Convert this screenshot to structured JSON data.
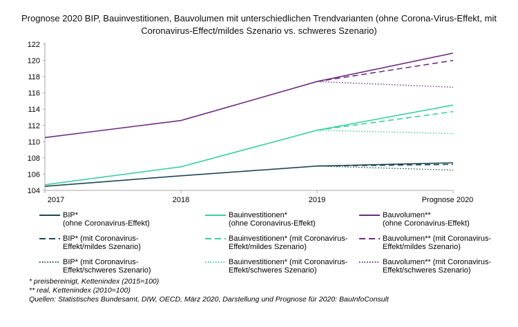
{
  "title": "Prognose 2020 BIP, Bauinvestitionen, Bauvolumen mit unterschiedlichen Trendvarianten (ohne Corona-Virus-Effekt, mit Coronavirus-Effect/mildes Szenario vs. schweres Szenario)",
  "colors": {
    "bip": "#1c4655",
    "bauinvestitionen": "#38cfa2",
    "bauvolumen": "#6b2a7e",
    "axis": "#a6a6a6",
    "text": "#000000",
    "background": "#ffffff"
  },
  "chart_data": {
    "type": "line",
    "title": "Prognose 2020 BIP, Bauinvestitionen, Bauvolumen mit unterschiedlichen Trendvarianten",
    "categories": [
      "2017",
      "2018",
      "2019",
      "Prognose 2020"
    ],
    "ylim": [
      104,
      122
    ],
    "ytick_step": 2,
    "grid": false,
    "legend_position": "bottom",
    "series": [
      {
        "name": "BIP* (ohne Coronavirus-Effekt)",
        "color": "#1c4655",
        "style": "solid",
        "values": [
          104.5,
          105.8,
          107.0,
          107.4
        ]
      },
      {
        "name": "BIP* (mit Coronavirus-Effekt/mildes Szenario)",
        "color": "#1c4655",
        "style": "dashed",
        "values": [
          null,
          null,
          107.0,
          107.2
        ]
      },
      {
        "name": "BIP* (mit Coronavirus-Effekt/schweres Szenario)",
        "color": "#1c4655",
        "style": "dotted",
        "values": [
          null,
          null,
          107.0,
          106.5
        ]
      },
      {
        "name": "Bauinvestitionen* (ohne Coronavirus-Effekt)",
        "color": "#38cfa2",
        "style": "solid",
        "values": [
          104.7,
          106.9,
          111.4,
          114.5
        ]
      },
      {
        "name": "Bauinvestitionen* (mit Coronavirus-Effekt/mildes Szenario)",
        "color": "#38cfa2",
        "style": "dashed",
        "values": [
          null,
          null,
          111.4,
          113.7
        ]
      },
      {
        "name": "Bauinvestitionen* (mit Coronavirus-Effekt/schweres Szenario)",
        "color": "#38cfa2",
        "style": "dotted",
        "values": [
          null,
          null,
          111.4,
          111.0
        ]
      },
      {
        "name": "Bauvolumen** (ohne Coronavirus-Effekt)",
        "color": "#6b2a7e",
        "style": "solid",
        "values": [
          110.5,
          112.6,
          117.4,
          120.9
        ]
      },
      {
        "name": "Bauvolumen** (mit Coronavirus-Effekt/mildes Szenario)",
        "color": "#6b2a7e",
        "style": "dashed",
        "values": [
          null,
          null,
          117.4,
          120.0
        ]
      },
      {
        "name": "Bauvolumen** (mit Coronavirus-Effekt/schweres Szenario)",
        "color": "#6b2a7e",
        "style": "dotted",
        "values": [
          null,
          null,
          117.4,
          116.7
        ]
      }
    ]
  },
  "legend": {
    "items": [
      {
        "style": "solid",
        "color": "#1c4655",
        "line1": "BIP*",
        "line2": "(ohne Coronavirus-Effekt)"
      },
      {
        "style": "solid",
        "color": "#38cfa2",
        "line1": "Bauinvestitionen*",
        "line2": "(ohne Coronavirus-Effekt)"
      },
      {
        "style": "solid",
        "color": "#6b2a7e",
        "line1": "Bauvolumen**",
        "line2": "(ohne Coronavirus-Effekt)"
      },
      {
        "style": "dashed",
        "color": "#1c4655",
        "line1": "BIP* (mit Coronavirus-",
        "line2": "Effekt/mildes Szenario)"
      },
      {
        "style": "dashed",
        "color": "#38cfa2",
        "line1": "Bauinvestitionen*  (mit Coronavirus-",
        "line2": "Effekt/mildes Szenario)"
      },
      {
        "style": "dashed",
        "color": "#6b2a7e",
        "line1": "Bauvolumen**  (mit Coronavirus-",
        "line2": "Effekt/mildes Szenario)"
      },
      {
        "style": "dotted",
        "color": "#1c4655",
        "line1": "BIP* (mit Coronavirus-",
        "line2": "Effekt/schweres Szenario)"
      },
      {
        "style": "dotted",
        "color": "#38cfa2",
        "line1": "Bauinvestitionen*  (mit Coronavirus-",
        "line2": "Effekt/schweres Szenario)"
      },
      {
        "style": "dotted",
        "color": "#6b2a7e",
        "line1": "Bauvolumen**  (mit Coronavirus-",
        "line2": "Effekt/schweres Szenario)"
      }
    ]
  },
  "footnotes": [
    "* preisbereinigt, Kettenindex (2015=100)",
    "** real, Kettenindex (2010=100)",
    "Quellen: Statistisches Bundesamt, DIW, OECD, März 2020, Darstellung und Prognose für 2020: BauInfoConsult"
  ]
}
